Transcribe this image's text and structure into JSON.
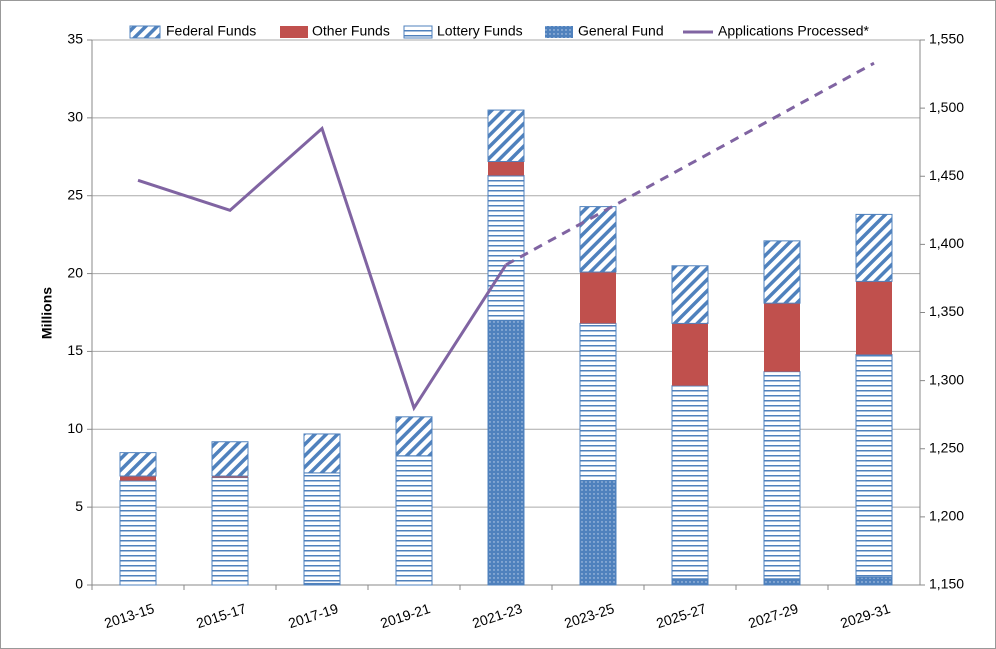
{
  "chart_data": {
    "type": "stacked_bar_line",
    "y_label": "Millions",
    "categories": [
      "2013-15",
      "2015-17",
      "2017-19",
      "2019-21",
      "2021-23",
      "2023-25",
      "2025-27",
      "2027-29",
      "2029-31"
    ],
    "series": [
      {
        "name": "General Fund",
        "color": "#4f81bd",
        "values": [
          0,
          0,
          0.1,
          0,
          17.0,
          6.7,
          0.4,
          0.4,
          0.5
        ]
      },
      {
        "name": "Lottery Funds",
        "color": "#4f81bd",
        "values": [
          6.7,
          6.9,
          7.1,
          8.3,
          9.3,
          10.1,
          12.4,
          13.3,
          14.3
        ]
      },
      {
        "name": "Other Funds",
        "color": "#c0504d",
        "values": [
          0.3,
          0.1,
          0,
          0,
          0.9,
          3.3,
          4.0,
          4.4,
          4.7
        ]
      },
      {
        "name": "Federal Funds",
        "color": "#4f81bd",
        "values": [
          1.5,
          2.2,
          2.5,
          2.5,
          3.3,
          4.2,
          3.7,
          4.0,
          4.3
        ]
      },
      {
        "name": "Applications Processed*",
        "color": "#8064a2",
        "axis": "y2",
        "values": [
          1447,
          1425,
          1485,
          1280,
          1385,
          null,
          null,
          null,
          null
        ],
        "projected_values": [
          null,
          null,
          null,
          null,
          1385,
          1422,
          1459,
          1496,
          1533
        ]
      }
    ],
    "ylim": [
      0,
      35
    ],
    "yticks": [
      0,
      5,
      10,
      15,
      20,
      25,
      30,
      35
    ],
    "y2lim": [
      1150,
      1550
    ],
    "y2ticks": [
      {
        "value": 1150,
        "label": "1,150"
      },
      {
        "value": 1200,
        "label": "1,200"
      },
      {
        "value": 1250,
        "label": "1,250"
      },
      {
        "value": 1300,
        "label": "1,300"
      },
      {
        "value": 1350,
        "label": "1,350"
      },
      {
        "value": 1400,
        "label": "1,400"
      },
      {
        "value": 1450,
        "label": "1,450"
      },
      {
        "value": 1500,
        "label": "1,500"
      },
      {
        "value": 1550,
        "label": "1,550"
      }
    ],
    "grid": true,
    "legend": "top"
  }
}
